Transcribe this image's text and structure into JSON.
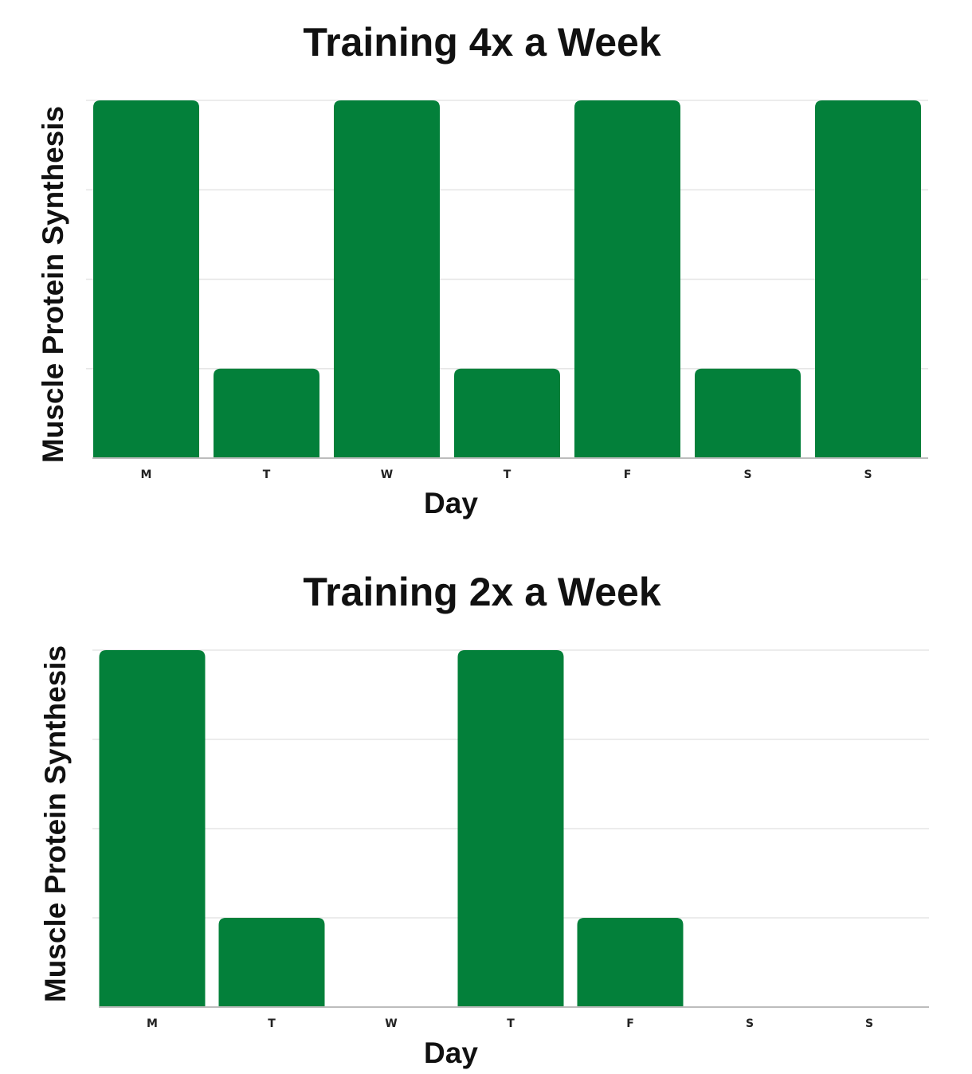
{
  "chart_data": [
    {
      "type": "bar",
      "title": "Training 4x a Week",
      "xlabel": "Day",
      "ylabel": "Muscle Protein Synthesis",
      "categories": [
        "M",
        "T",
        "W",
        "T",
        "F",
        "S",
        "S"
      ],
      "values": [
        4,
        1,
        4,
        1,
        4,
        1,
        4
      ],
      "ylim": [
        0,
        4
      ],
      "grid": true,
      "color": "#03803a"
    },
    {
      "type": "bar",
      "title": "Training 2x a Week",
      "xlabel": "Day",
      "ylabel": "Muscle Protein Synthesis",
      "categories": [
        "M",
        "T",
        "W",
        "T",
        "F",
        "S",
        "S"
      ],
      "values": [
        4,
        1,
        0,
        4,
        1,
        0,
        0
      ],
      "ylim": [
        0,
        4
      ],
      "grid": true,
      "color": "#03803a"
    }
  ]
}
